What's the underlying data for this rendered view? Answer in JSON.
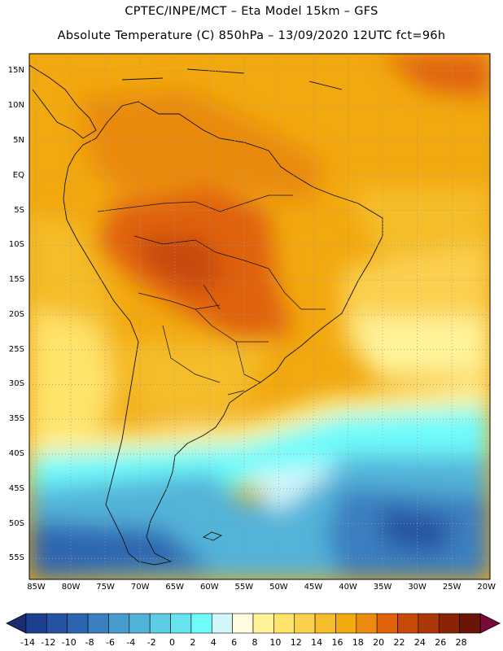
{
  "header": {
    "line1": "CPTEC/INPE/MCT –  Eta Model 15km – GFS",
    "line2": "Absolute Temperature (C) 850hPa – 13/09/2020 12UTC fct=96h"
  },
  "map": {
    "lat_labels": [
      "15N",
      "10N",
      "5N",
      "EQ",
      "5S",
      "10S",
      "15S",
      "20S",
      "25S",
      "30S",
      "35S",
      "40S",
      "45S",
      "50S",
      "55S"
    ],
    "lat_values": [
      15,
      10,
      5,
      0,
      -5,
      -10,
      -15,
      -20,
      -25,
      -30,
      -35,
      -40,
      -45,
      -50,
      -55
    ],
    "lon_labels": [
      "85W",
      "80W",
      "75W",
      "70W",
      "65W",
      "60W",
      "55W",
      "50W",
      "45W",
      "40W",
      "35W",
      "30W",
      "25W",
      "20W"
    ],
    "lon_values": [
      -85,
      -80,
      -75,
      -70,
      -65,
      -60,
      -55,
      -50,
      -45,
      -40,
      -35,
      -30,
      -25,
      -20
    ],
    "lat_range": [
      -58,
      17.5
    ],
    "lon_range": [
      -86,
      -19.5
    ]
  },
  "colorbar": {
    "labels": [
      "-14",
      "-12",
      "-10",
      "-8",
      "-6",
      "-4",
      "-2",
      "0",
      "2",
      "4",
      "6",
      "8",
      "10",
      "12",
      "14",
      "16",
      "18",
      "20",
      "22",
      "24",
      "26",
      "28"
    ],
    "colors": [
      "#1c3f8f",
      "#2553a0",
      "#2d66b0",
      "#3a7fc0",
      "#479bcf",
      "#52b3d9",
      "#5ccde3",
      "#66e3ef",
      "#70fbfb",
      "#d2f7fb",
      "#fffae0",
      "#fff39a",
      "#ffe36a",
      "#fbd04f",
      "#f5bd2c",
      "#f2a80f",
      "#ea8a10",
      "#e0620a",
      "#c74a08",
      "#ad3706",
      "#8a2404",
      "#6a1505"
    ],
    "end_left_color": "#1c2a72",
    "end_right_color": "#7a0a3a"
  }
}
